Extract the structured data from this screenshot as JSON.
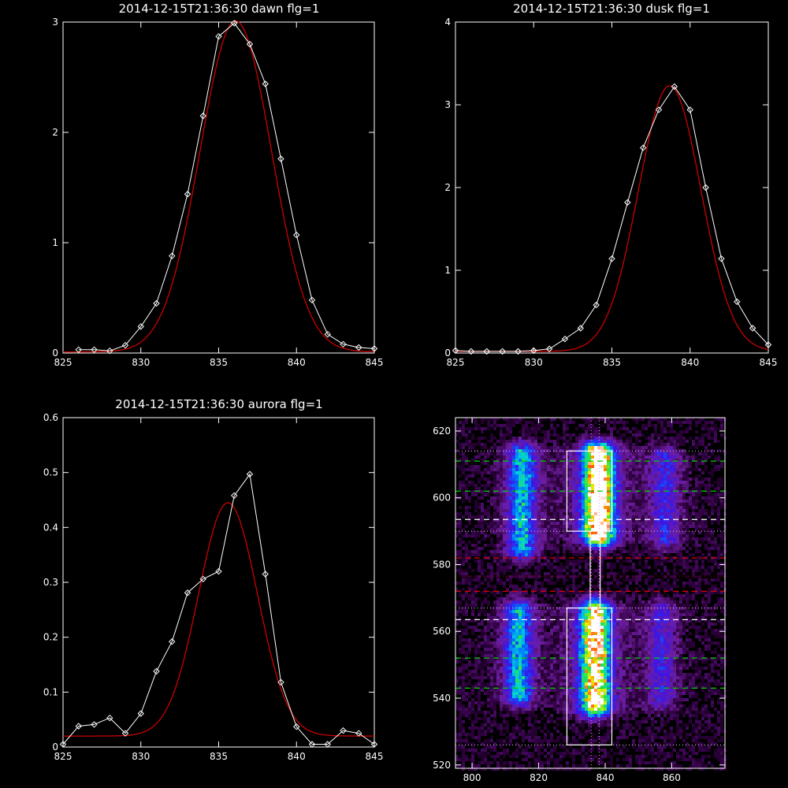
{
  "chart_data": [
    {
      "type": "line",
      "title": "2014-12-15T21:36:30 dawn flg=1",
      "xlabel": "",
      "ylabel": "",
      "xlim": [
        825,
        845
      ],
      "ylim": [
        0,
        3
      ],
      "xticks": [
        825,
        830,
        835,
        840,
        845
      ],
      "yticks": [
        0,
        1,
        2,
        3
      ],
      "colors": {
        "data": "#ffffff",
        "fit": "#cc0000"
      },
      "series": [
        {
          "x": [
            826,
            827,
            828,
            829,
            830,
            831,
            832,
            833,
            834,
            835,
            836,
            837,
            838,
            839,
            840,
            841,
            842,
            843,
            844,
            845
          ],
          "values": [
            0.03,
            0.03,
            0.02,
            0.07,
            0.24,
            0.45,
            0.88,
            1.44,
            2.15,
            2.87,
            2.99,
            2.8,
            2.44,
            1.76,
            1.07,
            0.48,
            0.17,
            0.08,
            0.05,
            0.04
          ]
        },
        {
          "fit": true,
          "mu": 836.1,
          "sigma": 2.3,
          "amp": 3.0,
          "base": 0.01
        }
      ]
    },
    {
      "type": "line",
      "title": "2014-12-15T21:36:30 dusk flg=1",
      "xlabel": "",
      "ylabel": "",
      "xlim": [
        825,
        845
      ],
      "ylim": [
        0,
        4
      ],
      "xticks": [
        825,
        830,
        835,
        840,
        845
      ],
      "yticks": [
        0,
        1,
        2,
        3,
        4
      ],
      "colors": {
        "data": "#ffffff",
        "fit": "#cc0000"
      },
      "series": [
        {
          "x": [
            825,
            826,
            827,
            828,
            829,
            830,
            831,
            832,
            833,
            834,
            835,
            836,
            837,
            838,
            839,
            840,
            841,
            842,
            843,
            844,
            845
          ],
          "values": [
            0.03,
            0.02,
            0.02,
            0.02,
            0.02,
            0.03,
            0.05,
            0.17,
            0.3,
            0.58,
            1.14,
            1.82,
            2.48,
            2.94,
            3.22,
            2.94,
            2.0,
            1.14,
            0.62,
            0.3,
            0.1
          ]
        },
        {
          "fit": true,
          "mu": 838.7,
          "sigma": 2.0,
          "amp": 3.21,
          "base": 0.02
        }
      ]
    },
    {
      "type": "line",
      "title": "2014-12-15T21:36:30 aurora flg=1",
      "xlabel": "",
      "ylabel": "",
      "xlim": [
        825,
        845
      ],
      "ylim": [
        0,
        0.6
      ],
      "xticks": [
        825,
        830,
        835,
        840,
        845
      ],
      "yticks": [
        0,
        0.1,
        0.2,
        0.3,
        0.4,
        0.5,
        0.6
      ],
      "colors": {
        "data": "#ffffff",
        "fit": "#cc0000"
      },
      "series": [
        {
          "x": [
            825,
            826,
            827,
            828,
            829,
            830,
            831,
            832,
            833,
            834,
            835,
            836,
            837,
            838,
            839,
            840,
            841,
            842,
            843,
            844,
            845
          ],
          "values": [
            0.005,
            0.038,
            0.041,
            0.053,
            0.025,
            0.061,
            0.138,
            0.192,
            0.281,
            0.306,
            0.32,
            0.458,
            0.497,
            0.315,
            0.118,
            0.037,
            0.005,
            0.005,
            0.03,
            0.025,
            0.005
          ]
        },
        {
          "fit": true,
          "mu": 835.6,
          "sigma": 1.9,
          "amp": 0.425,
          "base": 0.02
        }
      ]
    },
    {
      "type": "heatmap",
      "title": "",
      "xlabel": "",
      "ylabel": "",
      "xlim": [
        795,
        876
      ],
      "ylim": [
        519,
        624
      ],
      "xticks": [
        800,
        820,
        840,
        860
      ],
      "yticks": [
        520,
        540,
        560,
        580,
        600,
        620
      ],
      "columns": [
        {
          "x": 815,
          "y0": 585,
          "y1": 613,
          "peak": 0.45,
          "w": 2.8
        },
        {
          "x": 838,
          "y0": 589,
          "y1": 613,
          "peak": 1.0,
          "w": 3.0
        },
        {
          "x": 858,
          "y0": 588,
          "y1": 612,
          "peak": 0.25,
          "w": 3.0
        },
        {
          "x": 814,
          "y0": 541,
          "y1": 566,
          "peak": 0.45,
          "w": 2.8
        },
        {
          "x": 837,
          "y0": 538,
          "y1": 566,
          "peak": 0.85,
          "w": 3.0
        },
        {
          "x": 857,
          "y0": 540,
          "y1": 566,
          "peak": 0.22,
          "w": 3.0
        }
      ],
      "hlines": [
        {
          "y": 611,
          "color": "#00d000",
          "style": "dash"
        },
        {
          "y": 602,
          "color": "#00d000",
          "style": "dash"
        },
        {
          "y": 593.5,
          "color": "#ffffff",
          "style": "dash"
        },
        {
          "y": 582,
          "color": "#dd0000",
          "style": "dash"
        },
        {
          "y": 572,
          "color": "#dd0000",
          "style": "dash"
        },
        {
          "y": 563.5,
          "color": "#ffffff",
          "style": "dash"
        },
        {
          "y": 552,
          "color": "#00d000",
          "style": "dash"
        },
        {
          "y": 543,
          "color": "#00d000",
          "style": "dash"
        },
        {
          "y": 614,
          "color": "#cccccc",
          "style": "dot"
        },
        {
          "y": 590,
          "color": "#cccccc",
          "style": "dot"
        },
        {
          "y": 576.5,
          "color": "#aa0000",
          "style": "dot"
        },
        {
          "y": 567,
          "color": "#cccccc",
          "style": "dot"
        },
        {
          "y": 526,
          "color": "#cccccc",
          "style": "dot"
        }
      ],
      "vlines": [
        {
          "x": 835.8,
          "color": "#ff80ff",
          "style": "dot"
        },
        {
          "x": 838.2,
          "color": "#ff80ff",
          "style": "dot"
        }
      ],
      "boxes": [
        {
          "x0": 828.5,
          "x1": 842,
          "y0": 590,
          "y1": 614
        },
        {
          "x0": 828.5,
          "x1": 842,
          "y0": 526,
          "y1": 567
        }
      ],
      "connector": [
        [
          835.5,
          590
        ],
        [
          835.5,
          567
        ],
        [
          838.5,
          567
        ],
        [
          838.5,
          590
        ]
      ]
    }
  ]
}
